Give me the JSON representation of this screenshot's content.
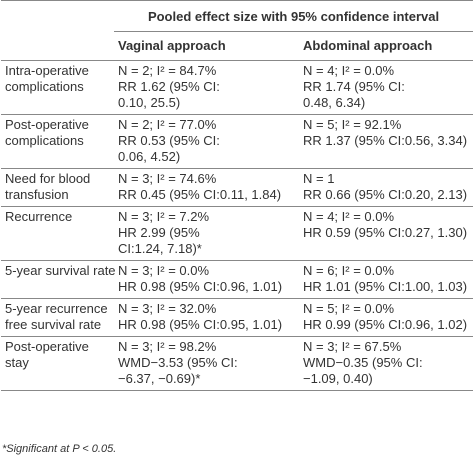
{
  "table": {
    "title": "Pooled effect size with 95% confidence interval",
    "columns": [
      "Vaginal approach",
      "Abdominal approach"
    ],
    "rows": [
      {
        "label": [
          "Intra-operative",
          "complications"
        ],
        "cells": [
          [
            "N = 2; I² = 84.7%",
            "RR 1.62 (95% CI:",
            "0.10, 25.5)"
          ],
          [
            "N = 4; I² = 0.0%",
            "RR 1.74 (95% CI:",
            "0.48, 6.34)"
          ]
        ]
      },
      {
        "label": [
          "Post-operative",
          "complications"
        ],
        "cells": [
          [
            "N = 2; I² = 77.0%",
            "RR 0.53 (95% CI:",
            "0.06, 4.52)"
          ],
          [
            "N = 5; I² = 92.1%",
            "RR 1.37 (95% CI:0.56, 3.34)"
          ]
        ]
      },
      {
        "label": [
          "Need for blood",
          "transfusion"
        ],
        "cells": [
          [
            "N = 3; I² = 74.6%",
            "RR 0.45 (95% CI:0.11, 1.84)"
          ],
          [
            "N = 1",
            "RR 0.66 (95% CI:0.20, 2.13)"
          ]
        ]
      },
      {
        "label": [
          "Recurrence"
        ],
        "cells": [
          [
            "N = 3; I² = 7.2%",
            "HR 2.99 (95%",
            "CI:1.24, 7.18)*"
          ],
          [
            "N = 4; I² = 0.0%",
            "HR 0.59 (95% CI:0.27, 1.30)"
          ]
        ]
      },
      {
        "label": [
          "5-year survival rate"
        ],
        "cells": [
          [
            "N = 3; I² = 0.0%",
            "HR 0.98 (95% CI:0.96, 1.01)"
          ],
          [
            "N = 6; I² = 0.0%",
            "HR 1.01 (95% CI:1.00, 1.03)"
          ]
        ]
      },
      {
        "label": [
          "5-year recurrence",
          "free survival rate"
        ],
        "cells": [
          [
            "N = 3; I² = 32.0%",
            "HR 0.98 (95% CI:0.95, 1.01)"
          ],
          [
            "N = 5; I² = 0.0%",
            "HR 0.99 (95% CI:0.96, 1.02)"
          ]
        ]
      },
      {
        "label": [
          "Post-operative",
          "stay"
        ],
        "cells": [
          [
            "N = 3; I² = 98.2%",
            "WMD−3.53 (95% CI:",
            "−6.37, −0.69)*"
          ],
          [
            "N = 3; I² = 67.5%",
            "WMD−0.35 (95% CI:",
            "−1.09, 0.40)"
          ]
        ]
      }
    ],
    "footnote": "*Significant at P < 0.05."
  }
}
